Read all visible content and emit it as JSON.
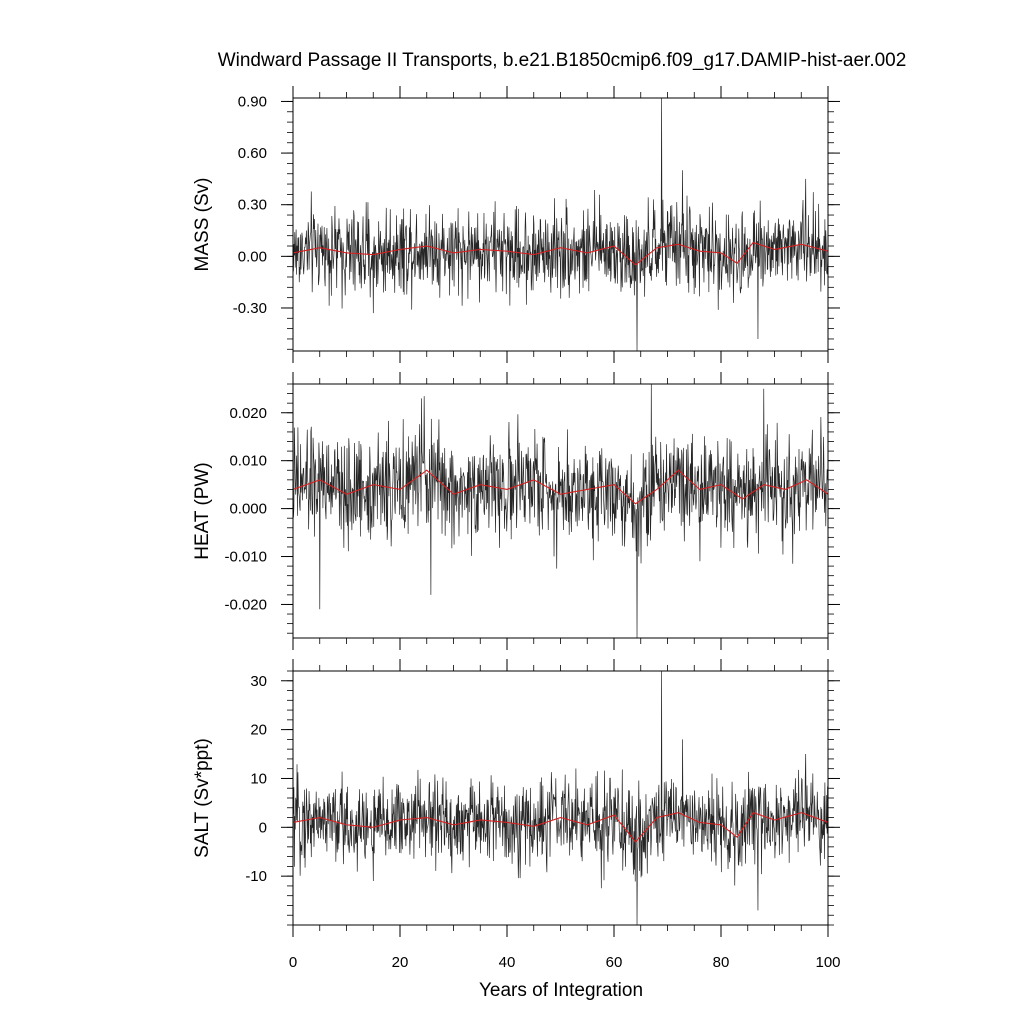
{
  "chart_data": {
    "type": "line",
    "title": "Windward Passage II Transports, b.e21.B1850cmip6.f09_g17.DAMIP-hist-aer.002",
    "xlabel": "Years of Integration",
    "xlim": [
      0,
      100
    ],
    "x_ticks": [
      "0",
      "20",
      "40",
      "60",
      "80",
      "100"
    ],
    "colors": {
      "raw": "#000000",
      "smooth": "#d62020"
    },
    "panels": [
      {
        "ylabel": "MASS (Sv)",
        "ylim": [
          -0.55,
          0.92
        ],
        "y_ticks": [
          "-0.30",
          "0.00",
          "0.30",
          "0.60",
          "0.90"
        ],
        "y_tick_values": [
          -0.3,
          0.0,
          0.3,
          0.6,
          0.9
        ],
        "minor_step": 0.06,
        "series_stats": {
          "mean": 0.03,
          "amplitude": 0.13
        },
        "spikes": [
          [
            68.9,
            0.92
          ],
          [
            64.3,
            -0.55
          ],
          [
            86.9,
            -0.48
          ],
          [
            72.8,
            0.5
          ],
          [
            95.8,
            0.45
          ],
          [
            15.0,
            -0.33
          ]
        ],
        "smooth_points": [
          [
            0,
            0.02
          ],
          [
            5,
            0.05
          ],
          [
            10,
            0.02
          ],
          [
            15,
            0.01
          ],
          [
            20,
            0.04
          ],
          [
            25,
            0.06
          ],
          [
            30,
            0.02
          ],
          [
            35,
            0.04
          ],
          [
            40,
            0.03
          ],
          [
            45,
            0.01
          ],
          [
            50,
            0.05
          ],
          [
            55,
            0.02
          ],
          [
            60,
            0.06
          ],
          [
            64,
            -0.05
          ],
          [
            68,
            0.05
          ],
          [
            72,
            0.07
          ],
          [
            76,
            0.03
          ],
          [
            80,
            0.02
          ],
          [
            83,
            -0.04
          ],
          [
            86,
            0.08
          ],
          [
            90,
            0.04
          ],
          [
            95,
            0.07
          ],
          [
            100,
            0.03
          ]
        ]
      },
      {
        "ylabel": "HEAT (PW)",
        "ylim": [
          -0.027,
          0.026
        ],
        "y_ticks": [
          "-0.020",
          "-0.010",
          "0.000",
          "0.010",
          "0.020"
        ],
        "y_tick_values": [
          -0.02,
          -0.01,
          0.0,
          0.01,
          0.02
        ],
        "minor_step": 0.002,
        "series_stats": {
          "mean": 0.0045,
          "amplitude": 0.0055
        },
        "spikes": [
          [
            64.3,
            -0.027
          ],
          [
            67.0,
            0.026
          ],
          [
            88.0,
            0.025
          ],
          [
            5.0,
            -0.021
          ],
          [
            25.8,
            -0.018
          ],
          [
            24.0,
            0.023
          ]
        ],
        "smooth_points": [
          [
            0,
            0.004
          ],
          [
            5,
            0.006
          ],
          [
            10,
            0.003
          ],
          [
            15,
            0.005
          ],
          [
            20,
            0.004
          ],
          [
            25,
            0.008
          ],
          [
            30,
            0.003
          ],
          [
            35,
            0.005
          ],
          [
            40,
            0.004
          ],
          [
            45,
            0.006
          ],
          [
            50,
            0.003
          ],
          [
            55,
            0.004
          ],
          [
            60,
            0.005
          ],
          [
            64,
            0.001
          ],
          [
            68,
            0.004
          ],
          [
            72,
            0.008
          ],
          [
            76,
            0.004
          ],
          [
            80,
            0.005
          ],
          [
            84,
            0.002
          ],
          [
            88,
            0.005
          ],
          [
            92,
            0.004
          ],
          [
            96,
            0.006
          ],
          [
            100,
            0.003
          ]
        ]
      },
      {
        "ylabel": "SALT (Sv*ppt)",
        "ylim": [
          -20,
          32
        ],
        "y_ticks": [
          "-10",
          "0",
          "10",
          "20",
          "30"
        ],
        "y_tick_values": [
          -10,
          0,
          10,
          20,
          30
        ],
        "minor_step": 2,
        "series_stats": {
          "mean": 1.0,
          "amplitude": 4.5
        },
        "spikes": [
          [
            68.9,
            32
          ],
          [
            64.3,
            -20
          ],
          [
            86.9,
            -17
          ],
          [
            72.8,
            18
          ],
          [
            95.8,
            15
          ],
          [
            15.0,
            -11
          ]
        ],
        "smooth_points": [
          [
            0,
            1.0
          ],
          [
            5,
            2.0
          ],
          [
            10,
            0.5
          ],
          [
            15,
            0.0
          ],
          [
            20,
            1.5
          ],
          [
            25,
            2.0
          ],
          [
            30,
            0.5
          ],
          [
            35,
            1.5
          ],
          [
            40,
            1.0
          ],
          [
            45,
            0.2
          ],
          [
            50,
            2.0
          ],
          [
            55,
            0.5
          ],
          [
            60,
            2.5
          ],
          [
            64,
            -3.0
          ],
          [
            68,
            2.0
          ],
          [
            72,
            3.0
          ],
          [
            76,
            1.0
          ],
          [
            80,
            0.5
          ],
          [
            83,
            -2.0
          ],
          [
            86,
            3.0
          ],
          [
            90,
            1.5
          ],
          [
            95,
            3.0
          ],
          [
            100,
            1.0
          ]
        ]
      }
    ]
  }
}
